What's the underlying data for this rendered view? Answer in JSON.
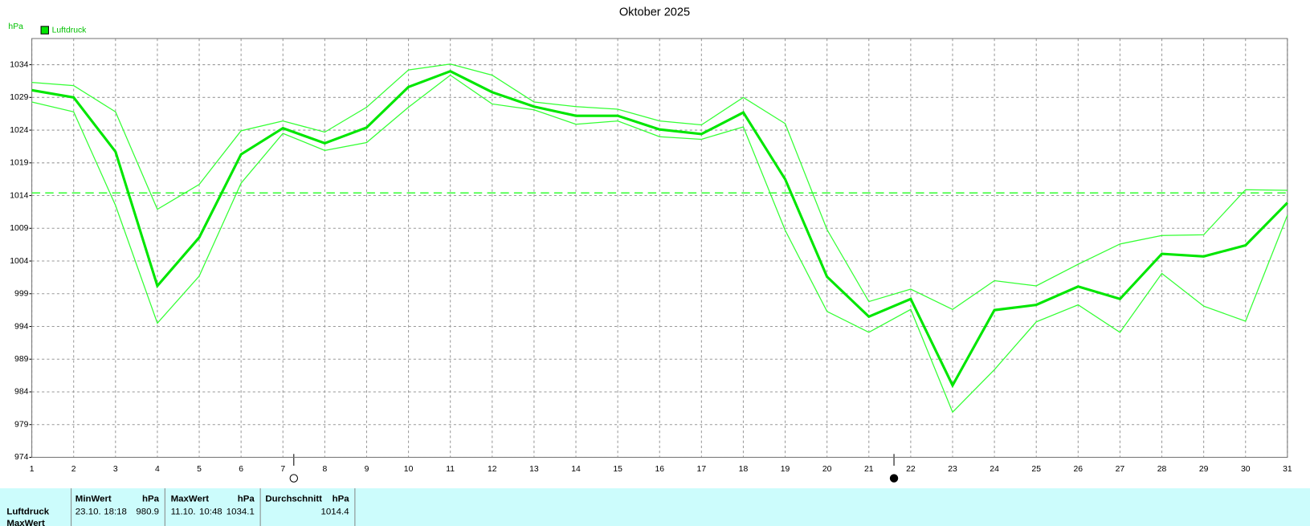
{
  "chart_data": {
    "type": "line",
    "title": "Oktober 2025",
    "y_label": "hPa",
    "x": [
      1,
      2,
      3,
      4,
      5,
      6,
      7,
      8,
      9,
      10,
      11,
      12,
      13,
      14,
      15,
      16,
      17,
      18,
      19,
      20,
      21,
      22,
      23,
      24,
      25,
      26,
      27,
      28,
      29,
      30,
      31
    ],
    "xlim": [
      1,
      31
    ],
    "xticks": [
      1,
      2,
      3,
      4,
      5,
      6,
      7,
      8,
      9,
      10,
      11,
      12,
      13,
      14,
      15,
      16,
      17,
      18,
      19,
      20,
      21,
      22,
      23,
      24,
      25,
      26,
      27,
      28,
      29,
      30,
      31
    ],
    "ylim": [
      974,
      1038
    ],
    "yticks": [
      974,
      979,
      984,
      989,
      994,
      999,
      1004,
      1009,
      1014,
      1019,
      1024,
      1029,
      1034
    ],
    "grid": true,
    "legend": "top-left",
    "series": [
      {
        "name": "Luftdruck",
        "color": "#00e600",
        "values": [
          1030.1,
          1029.0,
          1020.7,
          1000.2,
          1007.6,
          1020.3,
          1024.3,
          1022.0,
          1024.4,
          1030.6,
          1033.0,
          1029.8,
          1027.6,
          1026.2,
          1026.2,
          1024.1,
          1023.4,
          1026.7,
          1016.5,
          1001.6,
          995.5,
          998.2,
          985.0,
          996.5,
          997.3,
          1000.1,
          998.2,
          1005.1,
          1004.7,
          1006.4,
          1012.9
        ]
      },
      {
        "color": "#33ff33",
        "values": [
          1031.3,
          1030.8,
          1026.8,
          1011.9,
          1015.7,
          1023.9,
          1025.4,
          1023.7,
          1027.5,
          1033.2,
          1034.1,
          1032.4,
          1028.3,
          1027.6,
          1027.2,
          1025.4,
          1024.8,
          1029.0,
          1025.0,
          1008.8,
          997.8,
          999.7,
          996.6,
          1001.0,
          1000.2,
          1003.5,
          1006.6,
          1007.9,
          1008.0,
          1014.9,
          1014.8
        ]
      },
      {
        "color": "#33ff33",
        "values": [
          1028.3,
          1026.8,
          1012.5,
          994.5,
          1001.7,
          1015.9,
          1023.5,
          1020.9,
          1022.1,
          1027.5,
          1032.4,
          1028.0,
          1027.1,
          1024.9,
          1025.4,
          1023.0,
          1022.6,
          1024.5,
          1008.7,
          996.3,
          993.1,
          996.6,
          980.9,
          987.4,
          994.7,
          997.3,
          993.1,
          1002.1,
          997.1,
          994.8,
          1011.0
        ]
      }
    ]
  },
  "table": {
    "columns": [
      {
        "name": "MinWert",
        "unit": "hPa"
      },
      {
        "name": "MaxWert",
        "unit": "hPa"
      },
      {
        "name": "Durchschnitt",
        "unit": "hPa"
      }
    ],
    "rows": [
      {
        "label": "Luftdruck",
        "min": {
          "date": "23.10.",
          "time": "18:18",
          "value": 980.9
        },
        "max": {
          "date": "11.10.",
          "time": "10:48",
          "value": 1034.1
        },
        "avg": {
          "value": 1014.4
        }
      },
      {
        "label": "MaxWert"
      }
    ]
  }
}
